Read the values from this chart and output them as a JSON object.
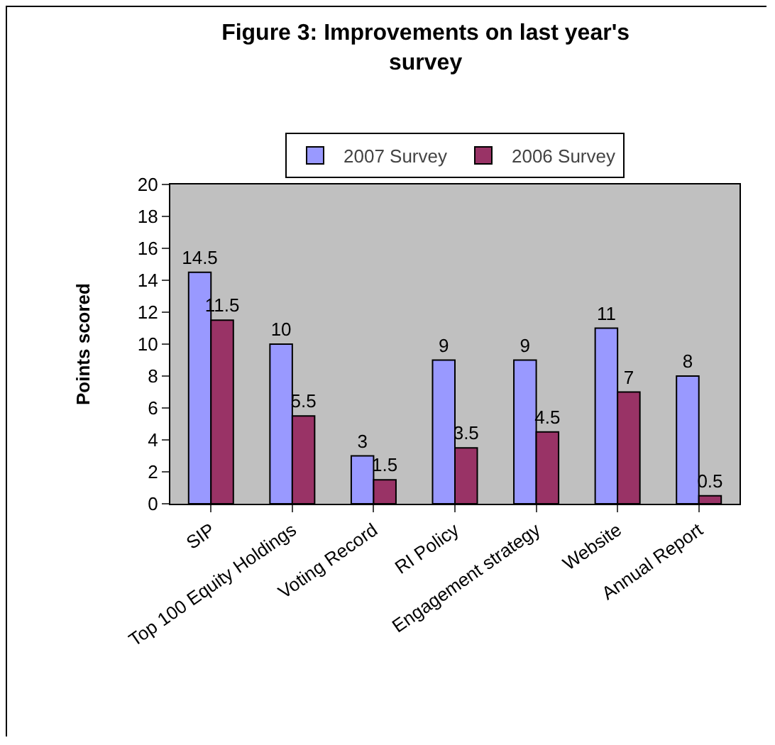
{
  "chart_data": {
    "type": "bar",
    "title": "Figure 3: Improvements on last year's survey",
    "ylabel": "Points scored",
    "categories": [
      "SIP",
      "Top 100 Equity Holdings",
      "Voting Record",
      "RI Policy",
      "Engagement strategy",
      "Website",
      "Annual Report"
    ],
    "series": [
      {
        "name": "2007 Survey",
        "color": "#9999ff",
        "values": [
          14.5,
          10,
          3,
          9,
          9,
          11,
          8
        ]
      },
      {
        "name": "2006 Survey",
        "color": "#993366",
        "values": [
          11.5,
          5.5,
          1.5,
          3.5,
          4.5,
          7,
          0.5
        ]
      }
    ],
    "ylim": [
      0,
      20
    ],
    "yticks": [
      0,
      2,
      4,
      6,
      8,
      10,
      12,
      14,
      16,
      18,
      20
    ],
    "grid": false,
    "legend": "top",
    "data_labels": true
  }
}
